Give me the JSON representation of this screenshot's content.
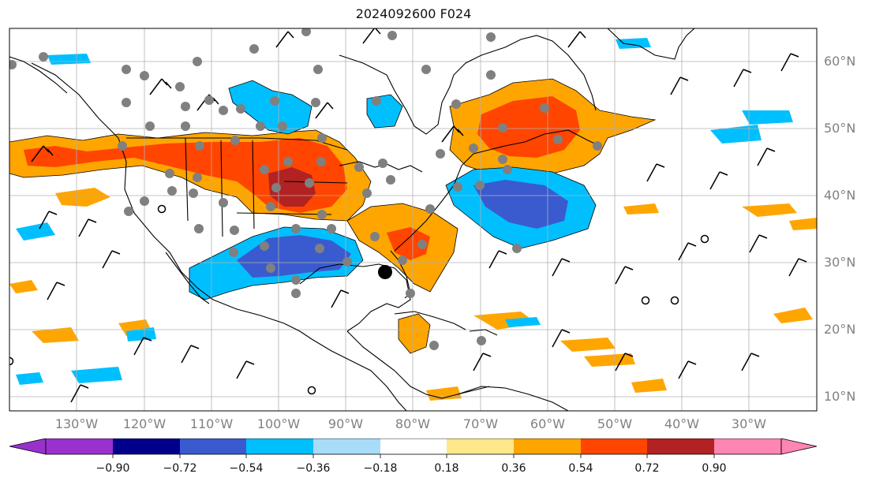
{
  "title": "2024092600 F024",
  "lat_ticks": [
    "60°N",
    "50°N",
    "40°N",
    "30°N",
    "20°N",
    "10°N"
  ],
  "lon_ticks": [
    "130°W",
    "120°W",
    "110°W",
    "100°W",
    "90°W",
    "80°W",
    "70°W",
    "60°W",
    "50°W",
    "40°W",
    "30°W"
  ],
  "colorbar": {
    "labels": [
      "−0.90",
      "−0.72",
      "−0.54",
      "−0.36",
      "−0.18",
      "0.18",
      "0.36",
      "0.54",
      "0.72",
      "0.90"
    ],
    "colors": [
      "#9932cc",
      "#00008b",
      "#3a5bcf",
      "#00bfff",
      "#a8dcfa",
      "#ffffff",
      "#ffe88a",
      "#ffa500",
      "#ff4500",
      "#b22222",
      "#ff85b3"
    ]
  },
  "colors": {
    "land_outline": "#000000",
    "grid": "#b0b0b0",
    "station_marker": "#808080",
    "storm_center": "#000000"
  }
}
